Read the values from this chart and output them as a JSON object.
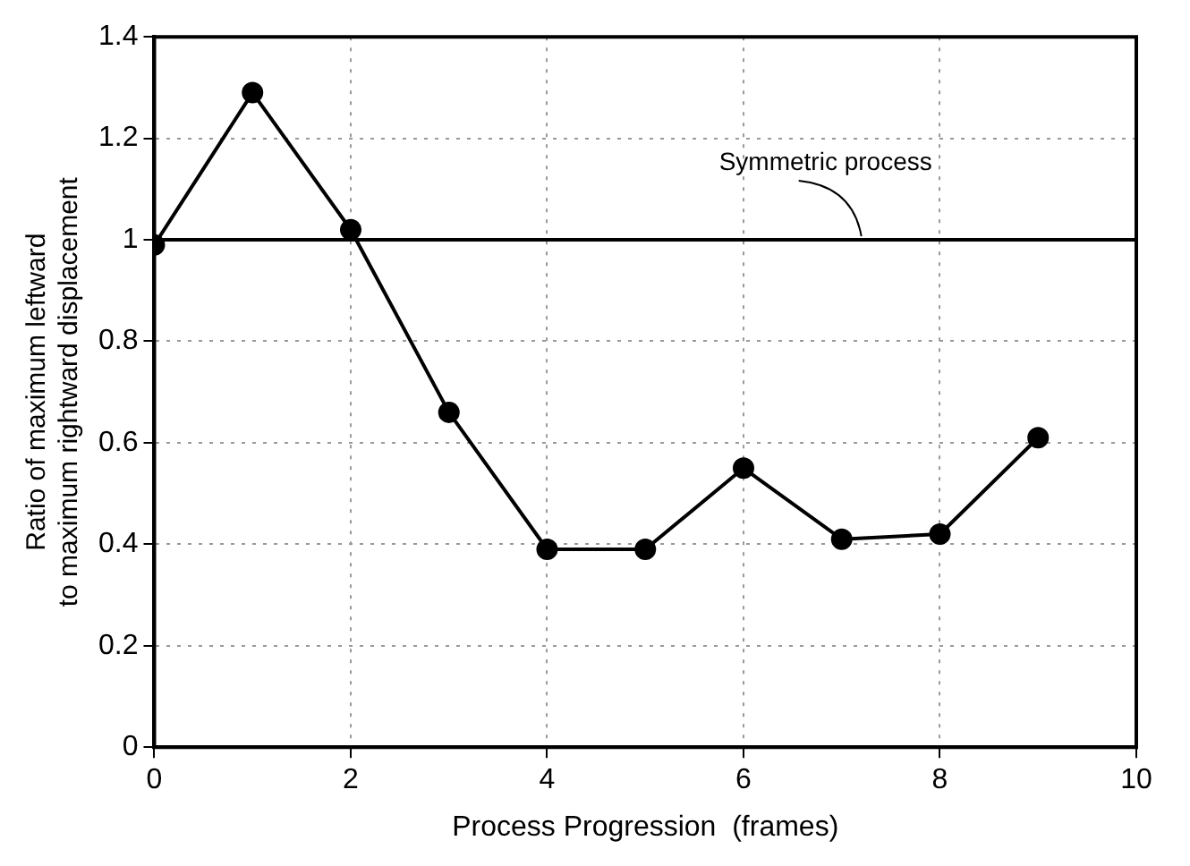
{
  "chart_data": {
    "type": "line",
    "xlabel": "Process Progression  (frames)",
    "ylabel": "Ratio of maximum leftward\nto maximum rightward displacement",
    "x": [
      0,
      1,
      2,
      3,
      4,
      5,
      6,
      7,
      8,
      9
    ],
    "series": [
      {
        "color": "#000000",
        "values": [
          0.99,
          1.29,
          1.02,
          0.66,
          0.39,
          0.39,
          0.55,
          0.41,
          0.42,
          0.61
        ]
      }
    ],
    "xlim": [
      0,
      10
    ],
    "xticks": [
      0,
      2,
      4,
      6,
      8,
      10
    ],
    "ylim": [
      0,
      1.4
    ],
    "yticks": [
      0,
      0.2,
      0.4,
      0.6,
      0.8,
      1,
      1.2,
      1.4
    ],
    "ref_lines": [
      {
        "axis": "y",
        "value": 1,
        "label": "Symmetric process",
        "color": "#000000"
      }
    ],
    "grid": true,
    "marker": "circle",
    "line_style": "solid",
    "legend": false
  }
}
